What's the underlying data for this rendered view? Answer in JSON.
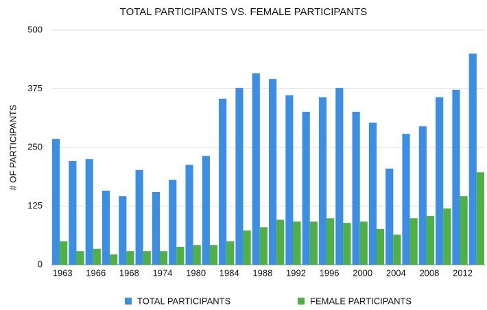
{
  "chart_data": {
    "type": "bar",
    "title": "TOTAL PARTICIPANTS VS. FEMALE PARTICIPANTS",
    "y_label": "# OF PARTICIPANTS",
    "categories": [
      "1963",
      null,
      "1966",
      null,
      "1968",
      null,
      "1974",
      null,
      "1980",
      null,
      "1984",
      null,
      "1988",
      null,
      "1992",
      null,
      "1996",
      null,
      "2000",
      null,
      "2004",
      null,
      "2008",
      null,
      "2012",
      null
    ],
    "series": [
      {
        "name": "TOTAL PARTICIPANTS",
        "color": "#3b8ee3",
        "values": [
          268,
          221,
          225,
          158,
          146,
          202,
          155,
          181,
          213,
          232,
          354,
          377,
          408,
          396,
          361,
          326,
          357,
          377,
          326,
          303,
          205,
          279,
          295,
          357,
          373,
          450
        ]
      },
      {
        "name": "FEMALE PARTICIPANTS",
        "color": "#4fb043",
        "values": [
          50,
          29,
          34,
          22,
          29,
          29,
          29,
          38,
          42,
          42,
          50,
          73,
          80,
          96,
          92,
          92,
          99,
          89,
          92,
          76,
          64,
          99,
          104,
          120,
          146,
          197
        ]
      }
    ],
    "ylim": [
      0,
      500
    ],
    "yticks": [
      0,
      125,
      250,
      375,
      500
    ],
    "grid": true,
    "legend": "bottom"
  }
}
